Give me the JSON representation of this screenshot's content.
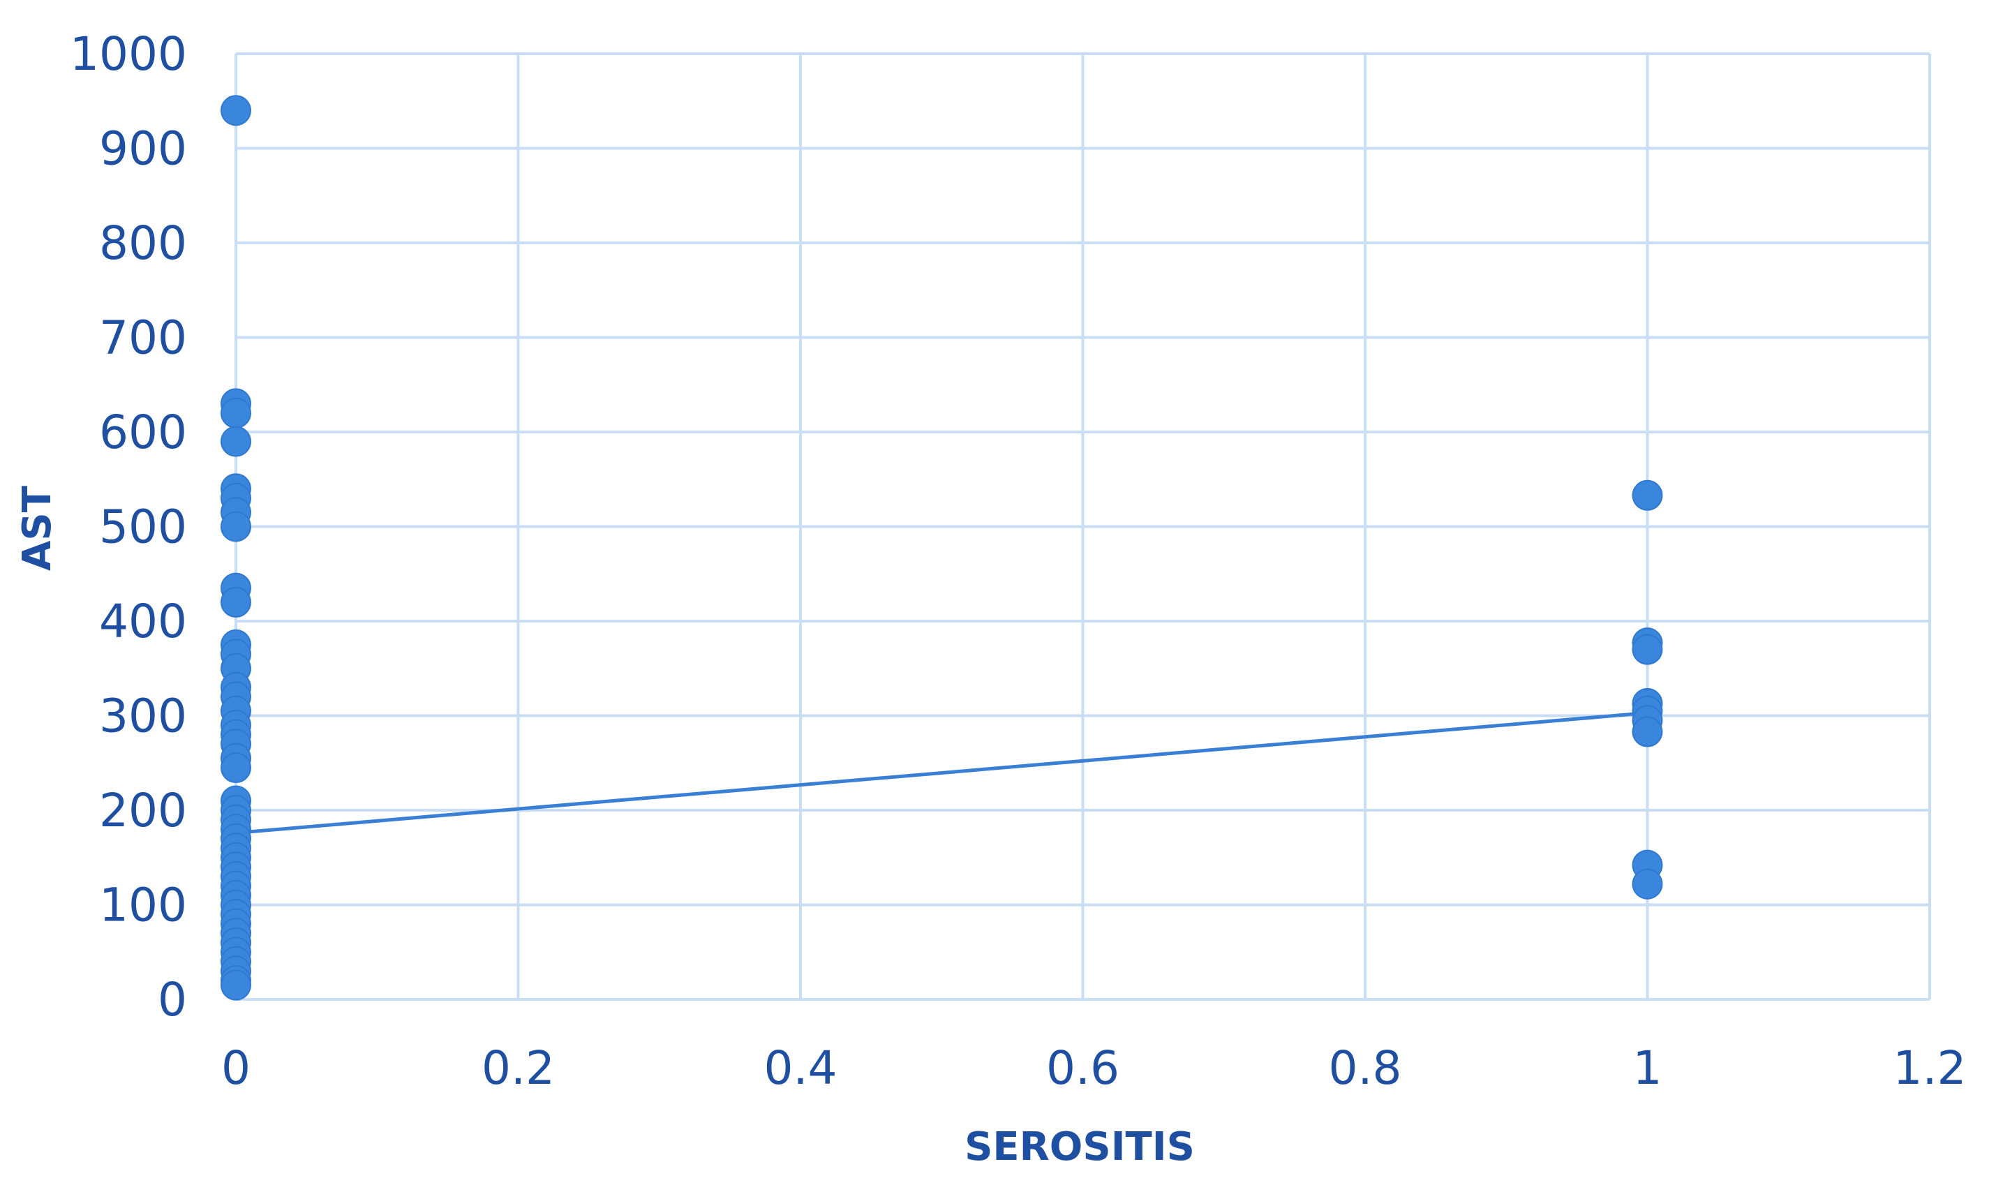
{
  "chart_data": {
    "type": "scatter",
    "xlabel": "SEROSITIS",
    "ylabel": "AST",
    "xlim": [
      0,
      1.2
    ],
    "ylim": [
      0,
      1000
    ],
    "x_ticks": [
      "0",
      "0.2",
      "0.4",
      "0.6",
      "0.8",
      "1",
      "1.2"
    ],
    "y_ticks": [
      "0",
      "100",
      "200",
      "300",
      "400",
      "500",
      "600",
      "700",
      "800",
      "900",
      "1000"
    ],
    "grid": true,
    "legend": "none",
    "colors": {
      "points": "#3a86dd",
      "trendline": "#3a7fd6",
      "grid": "#c9def4",
      "text": "#1f4fa0"
    },
    "series": [
      {
        "points": [
          {
            "x": 0,
            "y": 940
          },
          {
            "x": 0,
            "y": 630
          },
          {
            "x": 0,
            "y": 620
          },
          {
            "x": 0,
            "y": 590
          },
          {
            "x": 0,
            "y": 540
          },
          {
            "x": 0,
            "y": 530
          },
          {
            "x": 0,
            "y": 515
          },
          {
            "x": 0,
            "y": 500
          },
          {
            "x": 0,
            "y": 435
          },
          {
            "x": 0,
            "y": 420
          },
          {
            "x": 0,
            "y": 375
          },
          {
            "x": 0,
            "y": 365
          },
          {
            "x": 0,
            "y": 350
          },
          {
            "x": 0,
            "y": 330
          },
          {
            "x": 0,
            "y": 320
          },
          {
            "x": 0,
            "y": 305
          },
          {
            "x": 0,
            "y": 290
          },
          {
            "x": 0,
            "y": 280
          },
          {
            "x": 0,
            "y": 270
          },
          {
            "x": 0,
            "y": 255
          },
          {
            "x": 0,
            "y": 245
          },
          {
            "x": 0,
            "y": 210
          },
          {
            "x": 0,
            "y": 200
          },
          {
            "x": 0,
            "y": 190
          },
          {
            "x": 0,
            "y": 180
          },
          {
            "x": 0,
            "y": 170
          },
          {
            "x": 0,
            "y": 160
          },
          {
            "x": 0,
            "y": 150
          },
          {
            "x": 0,
            "y": 140
          },
          {
            "x": 0,
            "y": 130
          },
          {
            "x": 0,
            "y": 120
          },
          {
            "x": 0,
            "y": 110
          },
          {
            "x": 0,
            "y": 100
          },
          {
            "x": 0,
            "y": 90
          },
          {
            "x": 0,
            "y": 80
          },
          {
            "x": 0,
            "y": 70
          },
          {
            "x": 0,
            "y": 60
          },
          {
            "x": 0,
            "y": 50
          },
          {
            "x": 0,
            "y": 40
          },
          {
            "x": 0,
            "y": 30
          },
          {
            "x": 0,
            "y": 20
          },
          {
            "x": 0,
            "y": 15
          },
          {
            "x": 1,
            "y": 533
          },
          {
            "x": 1,
            "y": 377
          },
          {
            "x": 1,
            "y": 370
          },
          {
            "x": 1,
            "y": 313
          },
          {
            "x": 1,
            "y": 305
          },
          {
            "x": 1,
            "y": 295
          },
          {
            "x": 1,
            "y": 283
          },
          {
            "x": 1,
            "y": 142
          },
          {
            "x": 1,
            "y": 122
          }
        ]
      }
    ],
    "trendline": [
      {
        "x": 0,
        "y": 176
      },
      {
        "x": 1,
        "y": 303
      }
    ]
  }
}
